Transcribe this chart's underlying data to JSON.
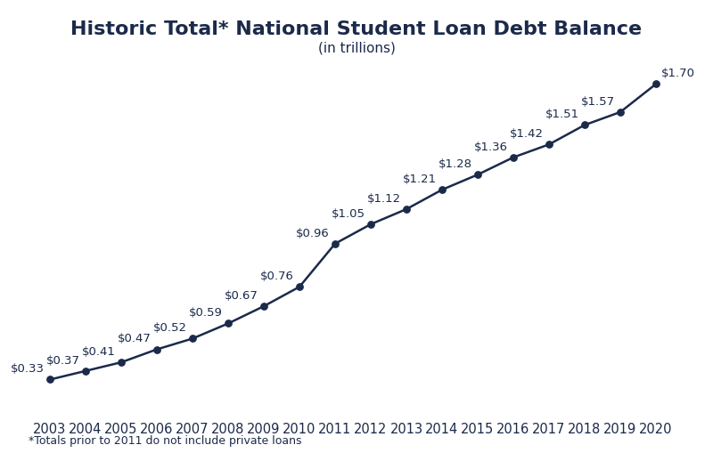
{
  "title": "Historic Total* National Student Loan Debt Balance",
  "subtitle": "(in trillions)",
  "footnote": "*Totals prior to 2011 do not include private loans",
  "years": [
    2003,
    2004,
    2005,
    2006,
    2007,
    2008,
    2009,
    2010,
    2011,
    2012,
    2013,
    2014,
    2015,
    2016,
    2017,
    2018,
    2019,
    2020
  ],
  "values": [
    0.33,
    0.37,
    0.41,
    0.47,
    0.52,
    0.59,
    0.67,
    0.76,
    0.96,
    1.05,
    1.12,
    1.21,
    1.28,
    1.36,
    1.42,
    1.51,
    1.57,
    1.7
  ],
  "labels": [
    "$0.33",
    "$0.37",
    "$0.41",
    "$0.47",
    "$0.52",
    "$0.59",
    "$0.67",
    "$0.76",
    "$0.96",
    "$1.05",
    "$1.12",
    "$1.21",
    "$1.28",
    "$1.36",
    "$1.42",
    "$1.51",
    "$1.57",
    "$1.70"
  ],
  "line_color": "#1b2a4a",
  "marker_color": "#1b2a4a",
  "background_color": "#ffffff",
  "title_fontsize": 16,
  "subtitle_fontsize": 11,
  "label_fontsize": 9.5,
  "tick_fontsize": 10.5,
  "footnote_fontsize": 9
}
